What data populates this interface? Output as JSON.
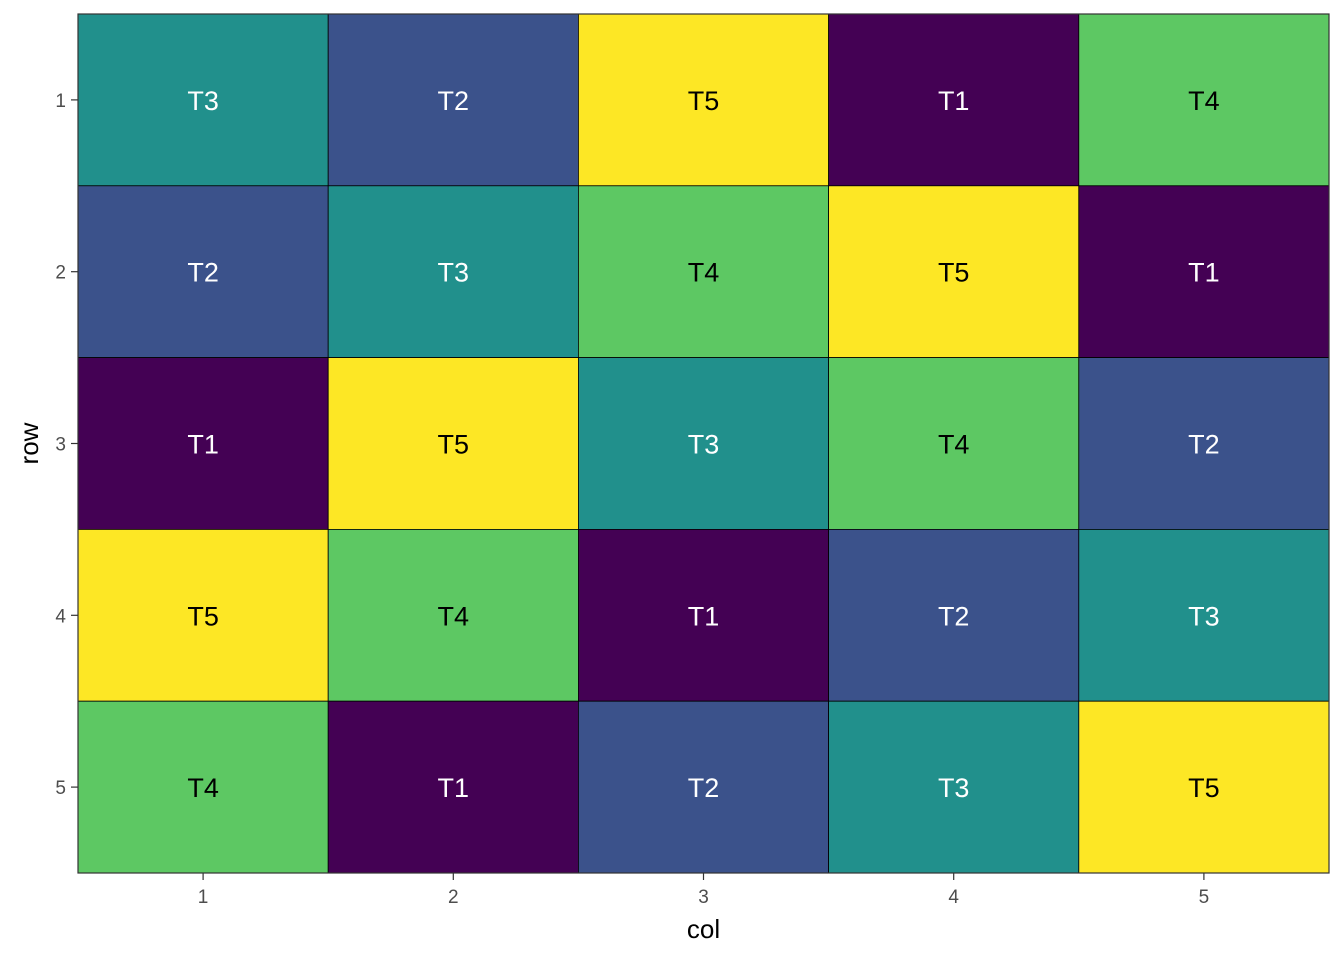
{
  "chart_data": {
    "type": "heatmap",
    "xlabel": "col",
    "ylabel": "row",
    "x_categories": [
      "1",
      "2",
      "3",
      "4",
      "5"
    ],
    "y_categories": [
      "1",
      "2",
      "3",
      "4",
      "5"
    ],
    "y_reversed": true,
    "grid": false,
    "legend": "none",
    "cells": [
      [
        "T3",
        "T2",
        "T5",
        "T1",
        "T4"
      ],
      [
        "T2",
        "T3",
        "T4",
        "T5",
        "T1"
      ],
      [
        "T1",
        "T5",
        "T3",
        "T4",
        "T2"
      ],
      [
        "T5",
        "T4",
        "T1",
        "T2",
        "T3"
      ],
      [
        "T4",
        "T1",
        "T2",
        "T3",
        "T5"
      ]
    ],
    "palette": {
      "T1": "#440154",
      "T2": "#3B528B",
      "T3": "#21908C",
      "T4": "#5DC863",
      "T5": "#FDE725"
    },
    "label_colors": {
      "T1": "#ffffff",
      "T2": "#ffffff",
      "T3": "#ffffff",
      "T4": "#000000",
      "T5": "#000000"
    }
  }
}
